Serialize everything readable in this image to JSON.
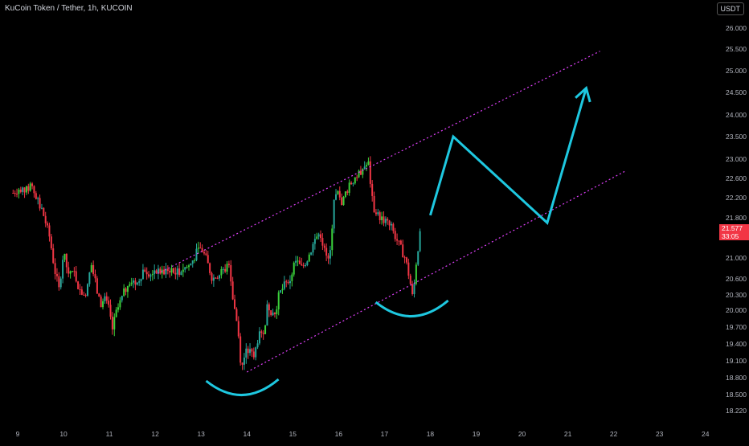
{
  "header": {
    "title": "KuCoin Token / Tether, 1h, KUCOIN",
    "currency": "USDT"
  },
  "last_price": {
    "value": "21.577",
    "countdown": "33:05",
    "color": "#f23645"
  },
  "colors": {
    "background": "#000000",
    "up": "#26a69a",
    "up_bright": "#3bd13b",
    "down": "#f23645",
    "channel": "#e040fb",
    "annotation": "#1ec8e0"
  },
  "chart_data": {
    "type": "candlestick",
    "title": "KuCoin Token / Tether, 1h, KUCOIN",
    "y_unit": "USDT",
    "y_ticks": [
      26.0,
      25.5,
      25.0,
      24.5,
      24.0,
      23.5,
      23.0,
      22.6,
      22.2,
      21.8,
      21.4,
      21.0,
      20.6,
      20.3,
      20.0,
      19.7,
      19.4,
      19.1,
      18.8,
      18.5,
      18.22
    ],
    "y_tick_labels": [
      "26.000",
      "25.500",
      "25.000",
      "24.500",
      "24.000",
      "23.500",
      "23.000",
      "22.600",
      "22.200",
      "21.800",
      "21.400",
      "21.000",
      "20.600",
      "20.300",
      "20.000",
      "19.700",
      "19.400",
      "19.100",
      "18.800",
      "18.500",
      "18.220"
    ],
    "x_tick_labels": [
      "9",
      "10",
      "11",
      "12",
      "13",
      "14",
      "15",
      "16",
      "17",
      "18",
      "19",
      "20",
      "21",
      "22",
      "23",
      "24"
    ],
    "x_ticks_day": [
      9,
      10,
      11,
      12,
      13,
      14,
      15,
      16,
      17,
      18,
      19,
      20,
      21,
      22,
      23,
      24
    ],
    "price_path": [
      [
        8.9,
        22.3
      ],
      [
        9.05,
        22.4
      ],
      [
        9.2,
        22.35
      ],
      [
        9.3,
        22.5
      ],
      [
        9.4,
        22.2
      ],
      [
        9.55,
        21.9
      ],
      [
        9.7,
        21.4
      ],
      [
        9.8,
        20.8
      ],
      [
        9.9,
        20.4
      ],
      [
        10.0,
        21.1
      ],
      [
        10.1,
        20.7
      ],
      [
        10.2,
        20.8
      ],
      [
        10.35,
        20.4
      ],
      [
        10.5,
        20.3
      ],
      [
        10.6,
        20.9
      ],
      [
        10.7,
        20.5
      ],
      [
        10.8,
        20.1
      ],
      [
        10.9,
        20.2
      ],
      [
        11.0,
        20.0
      ],
      [
        11.05,
        19.6
      ],
      [
        11.15,
        19.95
      ],
      [
        11.3,
        20.3
      ],
      [
        11.45,
        20.6
      ],
      [
        11.6,
        20.5
      ],
      [
        11.75,
        20.8
      ],
      [
        11.9,
        20.7
      ],
      [
        12.0,
        20.8
      ],
      [
        12.15,
        20.7
      ],
      [
        12.3,
        20.8
      ],
      [
        12.45,
        20.7
      ],
      [
        12.6,
        20.8
      ],
      [
        12.75,
        20.85
      ],
      [
        12.9,
        21.1
      ],
      [
        13.0,
        21.2
      ],
      [
        13.1,
        21.0
      ],
      [
        13.25,
        20.6
      ],
      [
        13.4,
        20.7
      ],
      [
        13.55,
        20.8
      ],
      [
        13.6,
        21.0
      ],
      [
        13.7,
        20.2
      ],
      [
        13.8,
        19.7
      ],
      [
        13.88,
        18.95
      ],
      [
        13.95,
        19.2
      ],
      [
        14.05,
        19.3
      ],
      [
        14.15,
        19.15
      ],
      [
        14.25,
        19.55
      ],
      [
        14.35,
        19.5
      ],
      [
        14.45,
        20.1
      ],
      [
        14.6,
        19.9
      ],
      [
        14.7,
        20.3
      ],
      [
        14.8,
        20.45
      ],
      [
        14.95,
        20.6
      ],
      [
        15.05,
        20.95
      ],
      [
        15.2,
        20.8
      ],
      [
        15.35,
        21.05
      ],
      [
        15.5,
        21.4
      ],
      [
        15.6,
        21.5
      ],
      [
        15.7,
        21.1
      ],
      [
        15.8,
        20.9
      ],
      [
        15.9,
        22.2
      ],
      [
        16.0,
        22.3
      ],
      [
        16.05,
        22.0
      ],
      [
        16.15,
        22.3
      ],
      [
        16.3,
        22.55
      ],
      [
        16.45,
        22.7
      ],
      [
        16.55,
        22.85
      ],
      [
        16.65,
        22.9
      ],
      [
        16.75,
        22.0
      ],
      [
        16.85,
        21.85
      ],
      [
        17.0,
        21.75
      ],
      [
        17.15,
        21.6
      ],
      [
        17.3,
        21.3
      ],
      [
        17.45,
        21.0
      ],
      [
        17.55,
        20.6
      ],
      [
        17.62,
        20.2
      ],
      [
        17.7,
        21.0
      ],
      [
        17.8,
        21.6
      ]
    ],
    "channel_upper": [
      [
        12.05,
        20.7
      ],
      [
        21.7,
        25.45
      ]
    ],
    "channel_lower": [
      [
        14.0,
        18.9
      ],
      [
        22.25,
        22.75
      ]
    ],
    "projection_path": [
      [
        18.0,
        21.85
      ],
      [
        18.5,
        23.5
      ],
      [
        20.55,
        21.7
      ],
      [
        21.4,
        24.6
      ]
    ],
    "arcs": [
      {
        "label": "first-low",
        "center_day": 13.9,
        "center_price": 18.6
      },
      {
        "label": "second-low",
        "center_day": 17.6,
        "center_price": 20.0
      }
    ]
  }
}
